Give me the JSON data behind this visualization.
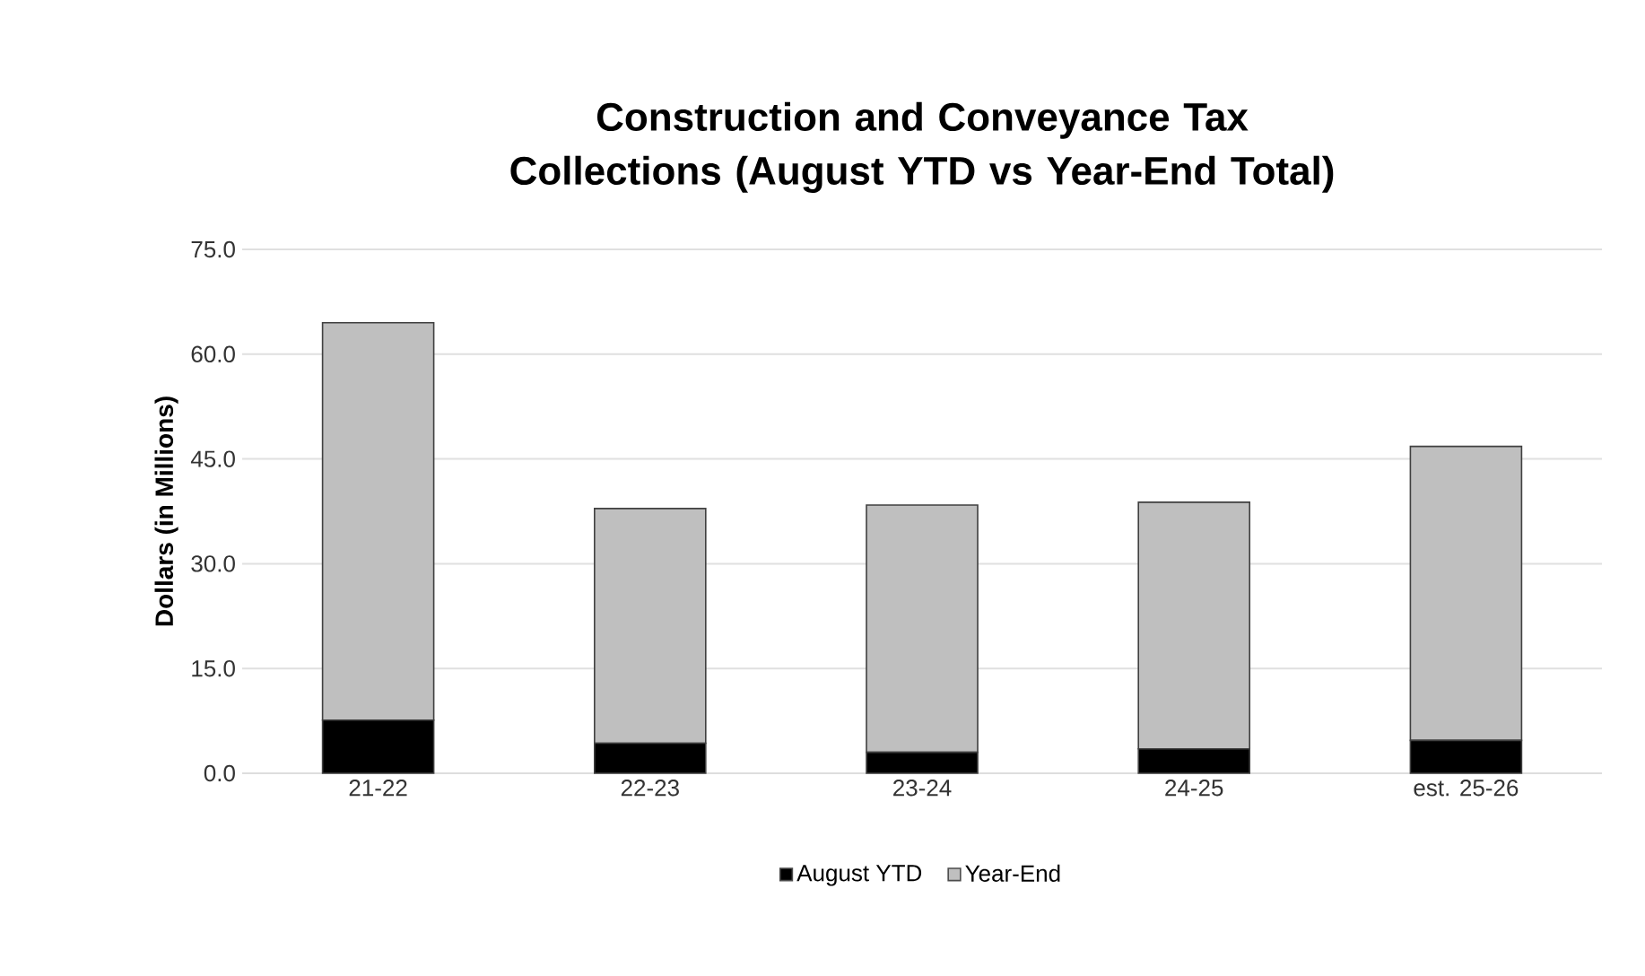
{
  "chart_data": {
    "type": "bar",
    "title": "Construction and Conveyance Tax Collections (August YTD vs Year-End Total)",
    "ylabel": "Dollars (in Millions)",
    "categories": [
      "21-22",
      "22-23",
      "23-24",
      "24-25",
      "est. 25-26"
    ],
    "stacked": true,
    "series": [
      {
        "name": "August YTD",
        "color": "#000000",
        "values": [
          7.6,
          4.3,
          3.0,
          3.5,
          4.7
        ]
      },
      {
        "name": "Year-End",
        "color": "#bfbfbf",
        "values": [
          56.9,
          33.6,
          35.4,
          35.3,
          42.1
        ]
      }
    ],
    "ylim": [
      0,
      75
    ],
    "yticks": [
      {
        "value": 0,
        "label": "0.0"
      },
      {
        "value": 15,
        "label": "15.0"
      },
      {
        "value": 30,
        "label": "30.0"
      },
      {
        "value": 45,
        "label": "45.0"
      },
      {
        "value": 60,
        "label": "60.0"
      },
      {
        "value": 75,
        "label": "75.0"
      }
    ],
    "grid": "y",
    "legend": "bottom"
  }
}
